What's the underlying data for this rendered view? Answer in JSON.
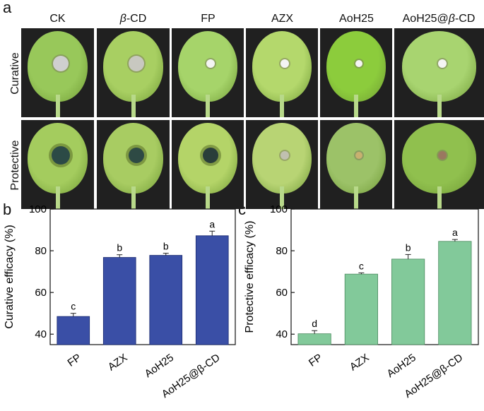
{
  "panels": {
    "a": "a",
    "b": "b",
    "c": "c"
  },
  "photos": {
    "columns": [
      "CK",
      "β-CD",
      "FP",
      "AZX",
      "AoH25",
      "AoH25@β-CD"
    ],
    "rows": [
      "Curative",
      "Protective"
    ]
  },
  "chart_data": [
    {
      "type": "bar",
      "title": "",
      "xlabel": "",
      "ylabel": "Curative efficacy (%)",
      "categories": [
        "FP",
        "AZX",
        "AoH25",
        "AoH25@β-CD"
      ],
      "values": [
        48.5,
        76.8,
        77.8,
        87.2
      ],
      "errors": [
        1.5,
        1.3,
        1.0,
        2.2
      ],
      "letters": [
        "c",
        "b",
        "b",
        "a"
      ],
      "ylim": [
        35,
        100
      ],
      "yticks": [
        40,
        60,
        80,
        100
      ],
      "color": "#3a4fa6",
      "edge": "#1a2a70"
    },
    {
      "type": "bar",
      "title": "",
      "xlabel": "",
      "ylabel": "Protective efficacy (%)",
      "categories": [
        "FP",
        "AZX",
        "AoH25",
        "AoH25@β-CD"
      ],
      "values": [
        40.2,
        68.8,
        76.0,
        84.5
      ],
      "errors": [
        1.5,
        0.6,
        2.2,
        0.9
      ],
      "letters": [
        "d",
        "c",
        "b",
        "a"
      ],
      "ylim": [
        35,
        100
      ],
      "yticks": [
        40,
        60,
        80,
        100
      ],
      "color": "#82c99a",
      "edge": "#4a8a5e"
    }
  ]
}
